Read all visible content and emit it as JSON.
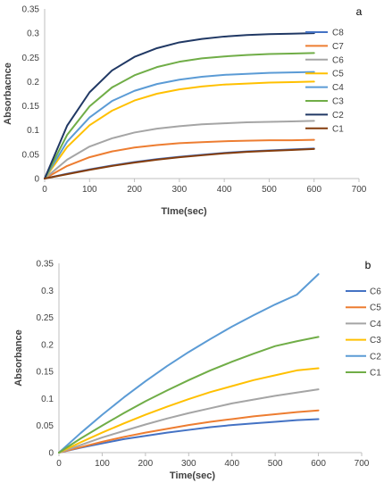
{
  "chart_data": [
    {
      "type": "line",
      "panel_label": "a",
      "xlabel": "TIme(sec)",
      "ylabel": "Absorbacnce",
      "xlim": [
        0,
        700
      ],
      "ylim": [
        0,
        0.35
      ],
      "x_ticks": [
        "0",
        "100",
        "200",
        "300",
        "400",
        "500",
        "600",
        "700"
      ],
      "y_ticks": [
        "0",
        "0.05",
        "0.1",
        "0.15",
        "0.2",
        "0.25",
        "0.3",
        "0.35"
      ],
      "grid": false,
      "legend_position": "right",
      "x": [
        0,
        50,
        100,
        150,
        200,
        250,
        300,
        350,
        400,
        450,
        500,
        550,
        600
      ],
      "series": [
        {
          "name": "C8",
          "color": "#4472C4",
          "values": [
            0,
            0.01,
            0.019,
            0.027,
            0.034,
            0.04,
            0.045,
            0.049,
            0.053,
            0.056,
            0.058,
            0.06,
            0.062
          ]
        },
        {
          "name": "C7",
          "color": "#ED7D31",
          "values": [
            0,
            0.026,
            0.044,
            0.056,
            0.064,
            0.069,
            0.073,
            0.075,
            0.077,
            0.078,
            0.079,
            0.079,
            0.08
          ]
        },
        {
          "name": "C6",
          "color": "#A5A5A5",
          "values": [
            0,
            0.039,
            0.066,
            0.083,
            0.095,
            0.103,
            0.108,
            0.112,
            0.114,
            0.116,
            0.117,
            0.118,
            0.119
          ]
        },
        {
          "name": "C5",
          "color": "#FFC000",
          "values": [
            0,
            0.065,
            0.11,
            0.14,
            0.161,
            0.175,
            0.184,
            0.19,
            0.194,
            0.196,
            0.198,
            0.199,
            0.2
          ]
        },
        {
          "name": "C4",
          "color": "#5B9BD5",
          "values": [
            0,
            0.076,
            0.126,
            0.16,
            0.181,
            0.195,
            0.204,
            0.21,
            0.214,
            0.216,
            0.218,
            0.219,
            0.22
          ]
        },
        {
          "name": "C3",
          "color": "#70AD47",
          "values": [
            0,
            0.09,
            0.149,
            0.188,
            0.213,
            0.23,
            0.241,
            0.248,
            0.252,
            0.255,
            0.257,
            0.258,
            0.259
          ]
        },
        {
          "name": "C2",
          "color": "#203864",
          "values": [
            0,
            0.109,
            0.178,
            0.223,
            0.251,
            0.269,
            0.281,
            0.288,
            0.293,
            0.296,
            0.298,
            0.299,
            0.3
          ]
        },
        {
          "name": "C1",
          "color": "#843C0C",
          "values": [
            0,
            0.009,
            0.018,
            0.026,
            0.033,
            0.039,
            0.044,
            0.048,
            0.052,
            0.055,
            0.057,
            0.059,
            0.061
          ]
        }
      ]
    },
    {
      "type": "line",
      "panel_label": "b",
      "xlabel": "Time(sec)",
      "ylabel": "Absorbance",
      "xlim": [
        0,
        700
      ],
      "ylim": [
        0,
        0.35
      ],
      "x_ticks": [
        "0",
        "100",
        "200",
        "300",
        "400",
        "500",
        "600",
        "700"
      ],
      "y_ticks": [
        "0",
        "0.05",
        "0.1",
        "0.15",
        "0.2",
        "0.25",
        "0.3",
        "0.35"
      ],
      "grid": false,
      "legend_position": "right",
      "x": [
        0,
        50,
        100,
        150,
        200,
        250,
        300,
        350,
        400,
        450,
        500,
        550,
        600
      ],
      "series": [
        {
          "name": "C6",
          "color": "#4472C4",
          "values": [
            0,
            0.009,
            0.017,
            0.025,
            0.031,
            0.037,
            0.042,
            0.047,
            0.051,
            0.054,
            0.057,
            0.06,
            0.062
          ]
        },
        {
          "name": "C5",
          "color": "#ED7D31",
          "values": [
            0,
            0.01,
            0.02,
            0.029,
            0.037,
            0.044,
            0.051,
            0.057,
            0.062,
            0.067,
            0.071,
            0.075,
            0.078
          ]
        },
        {
          "name": "C4",
          "color": "#A5A5A5",
          "values": [
            0,
            0.014,
            0.028,
            0.04,
            0.052,
            0.063,
            0.073,
            0.082,
            0.091,
            0.098,
            0.105,
            0.111,
            0.117
          ]
        },
        {
          "name": "C3",
          "color": "#FFC000",
          "values": [
            0,
            0.019,
            0.037,
            0.054,
            0.07,
            0.085,
            0.099,
            0.112,
            0.123,
            0.134,
            0.143,
            0.152,
            0.156
          ]
        },
        {
          "name": "C2",
          "color": "#5B9BD5",
          "values": [
            0,
            0.036,
            0.07,
            0.102,
            0.132,
            0.16,
            0.186,
            0.21,
            0.233,
            0.254,
            0.274,
            0.292,
            0.33
          ]
        },
        {
          "name": "C1",
          "color": "#70AD47",
          "values": [
            0,
            0.026,
            0.05,
            0.073,
            0.095,
            0.115,
            0.134,
            0.152,
            0.168,
            0.183,
            0.197,
            0.206,
            0.214
          ]
        }
      ]
    }
  ]
}
